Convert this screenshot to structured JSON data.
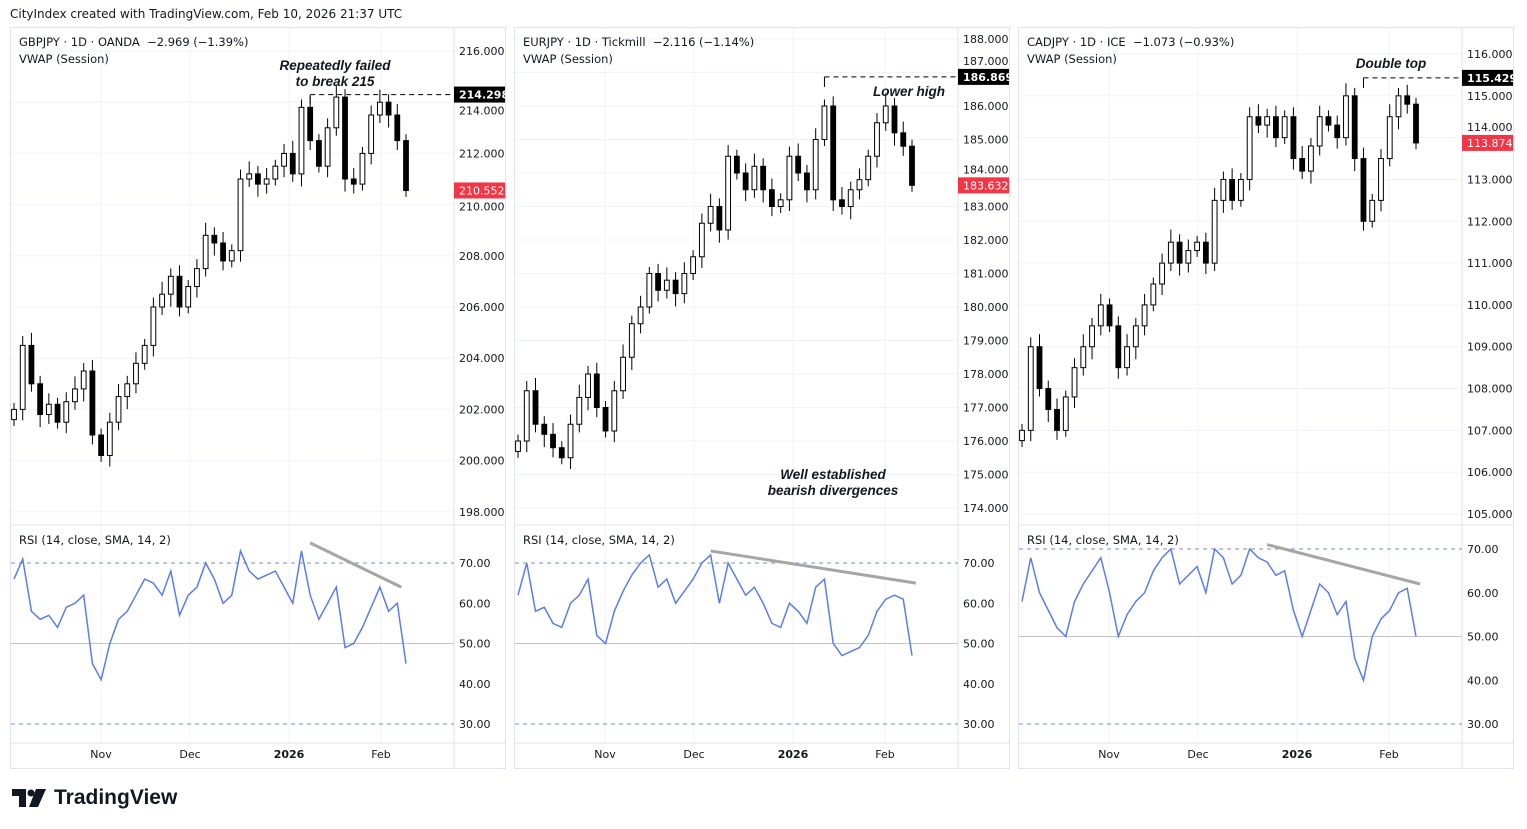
{
  "credit": "CityIndex created with TradingView.com, Feb 10, 2026 21:37 UTC",
  "logo_text": "TradingView",
  "colors": {
    "candle": "#000000",
    "rsi": "#5b7ee5",
    "last_price_badge": "#f23645",
    "level_badge": "#000000",
    "trendline": "#a6a6a6"
  },
  "chart_data": [
    {
      "type": "candlestick",
      "symbol_header": "GBPJPY · 1D · OANDA  −2.969 (−1.39%)",
      "indicator": "VWAP (Session)",
      "rsi_label": "RSI (14, close, SMA, 14, 2)",
      "price_ticks": [
        "216.000",
        "214.000",
        "212.000",
        "210.000",
        "208.000",
        "206.000",
        "204.000",
        "202.000",
        "200.000",
        "198.000"
      ],
      "ylim": [
        198,
        216
      ],
      "closes": [
        202.0,
        204.5,
        203.0,
        201.8,
        202.2,
        201.5,
        202.3,
        202.8,
        203.5,
        201.0,
        200.2,
        201.5,
        202.5,
        203.0,
        203.8,
        204.5,
        206.0,
        206.5,
        207.2,
        206.0,
        206.8,
        207.5,
        208.8,
        208.5,
        207.8,
        208.2,
        211.0,
        211.2,
        210.8,
        211.0,
        211.5,
        212.0,
        211.2,
        213.8,
        212.5,
        211.5,
        213.0,
        214.2,
        211.0,
        210.8,
        212.0,
        213.5,
        214.0,
        213.5,
        212.5,
        210.552
      ],
      "rsi": [
        66,
        71,
        58,
        56,
        57,
        54,
        59,
        60,
        62,
        45,
        41,
        50,
        56,
        58,
        62,
        66,
        65,
        62,
        68,
        57,
        62,
        64,
        70,
        66,
        60,
        62,
        73,
        68,
        66,
        67,
        68,
        64,
        60,
        73,
        62,
        56,
        60,
        64,
        49,
        50,
        54,
        59,
        64,
        58,
        60,
        45
      ],
      "rsi_ticks": [
        "70.00",
        "60.00",
        "50.00",
        "40.00",
        "30.00"
      ],
      "last_price": "210.552",
      "level": "214.298",
      "level_value": 214.298,
      "level_start": 34,
      "rsi_trend": {
        "from": [
          34,
          75
        ],
        "to": [
          44,
          64
        ]
      },
      "annotations": [
        "Repeatedly failed\nto break 215"
      ],
      "time_ticks": [
        "Nov",
        "Dec",
        "2026",
        "Feb"
      ]
    },
    {
      "type": "candlestick",
      "symbol_header": "EURJPY · 1D · Tickmill  −2.116 (−1.14%)",
      "indicator": "VWAP (Session)",
      "rsi_label": "RSI (14, close, SMA, 14, 2)",
      "price_ticks": [
        "188.000",
        "187.000",
        "186.000",
        "185.000",
        "184.000",
        "183.000",
        "182.000",
        "181.000",
        "180.000",
        "179.000",
        "178.000",
        "177.000",
        "176.000",
        "175.000",
        "174.000"
      ],
      "ylim": [
        174,
        188
      ],
      "closes": [
        176.0,
        177.5,
        176.5,
        176.2,
        175.8,
        175.5,
        176.5,
        177.3,
        178.0,
        177.0,
        176.3,
        177.5,
        178.5,
        179.5,
        180.0,
        181.0,
        180.5,
        180.8,
        180.4,
        181.0,
        181.5,
        182.5,
        183.0,
        182.3,
        184.5,
        184.0,
        183.5,
        184.2,
        183.5,
        183.0,
        183.2,
        184.5,
        184.0,
        183.5,
        185.0,
        186.0,
        183.2,
        183.0,
        183.5,
        183.8,
        184.5,
        185.5,
        186.0,
        185.2,
        184.8,
        183.632
      ],
      "rsi": [
        62,
        70,
        58,
        59,
        55,
        54,
        60,
        62,
        66,
        52,
        50,
        58,
        63,
        67,
        70,
        72,
        64,
        66,
        60,
        63,
        66,
        70,
        72,
        60,
        70,
        66,
        62,
        64,
        60,
        55,
        54,
        60,
        58,
        55,
        64,
        66,
        50,
        47,
        48,
        49,
        52,
        58,
        61,
        62,
        61,
        47
      ],
      "rsi_ticks": [
        "70.00",
        "60.00",
        "50.00",
        "40.00",
        "30.00"
      ],
      "last_price": "183.632",
      "level": "186.869",
      "level_value": 186.869,
      "level_start": 35,
      "rsi_trend": {
        "from": [
          22,
          73
        ],
        "to": [
          45,
          65
        ]
      },
      "annotations": [
        "Lower high",
        "Well established\nbearish divergences"
      ],
      "time_ticks": [
        "Nov",
        "Dec",
        "2026",
        "Feb"
      ]
    },
    {
      "type": "candlestick",
      "symbol_header": "CADJPY · 1D · ICE  −1.073 (−0.93%)",
      "indicator": "VWAP (Session)",
      "rsi_label": "RSI (14, close, SMA, 14, 2)",
      "price_ticks": [
        "116.000",
        "115.000",
        "114.000",
        "113.000",
        "112.000",
        "111.000",
        "110.000",
        "109.000",
        "108.000",
        "107.000",
        "106.000",
        "105.000"
      ],
      "ylim": [
        105,
        116
      ],
      "closes": [
        107.0,
        109.0,
        108.0,
        107.5,
        107.0,
        107.8,
        108.5,
        109.0,
        109.5,
        110.0,
        109.5,
        108.5,
        109.0,
        109.5,
        110.0,
        110.5,
        111.0,
        111.5,
        111.0,
        111.3,
        111.5,
        111.0,
        112.5,
        113.0,
        112.5,
        113.0,
        114.5,
        114.3,
        114.5,
        114.0,
        114.5,
        113.5,
        113.2,
        113.8,
        114.5,
        114.3,
        114.0,
        115.0,
        113.5,
        112.0,
        112.5,
        113.5,
        114.5,
        115.0,
        114.8,
        113.874
      ],
      "rsi": [
        58,
        68,
        60,
        56,
        52,
        50,
        58,
        62,
        65,
        68,
        60,
        50,
        55,
        58,
        60,
        65,
        68,
        70,
        62,
        64,
        66,
        60,
        70,
        68,
        62,
        64,
        70,
        68,
        67,
        64,
        65,
        56,
        50,
        56,
        62,
        60,
        55,
        58,
        45,
        40,
        50,
        54,
        56,
        60,
        61,
        50
      ],
      "rsi_ticks": [
        "70.00",
        "60.00",
        "50.00",
        "40.00",
        "30.00"
      ],
      "last_price": "113.874",
      "level": "115.429",
      "level_value": 115.429,
      "level_start": 39,
      "rsi_trend": {
        "from": [
          28,
          71
        ],
        "to": [
          46,
          62
        ]
      },
      "annotations": [
        "Double top"
      ],
      "time_ticks": [
        "Nov",
        "Dec",
        "2026",
        "Feb"
      ]
    }
  ]
}
